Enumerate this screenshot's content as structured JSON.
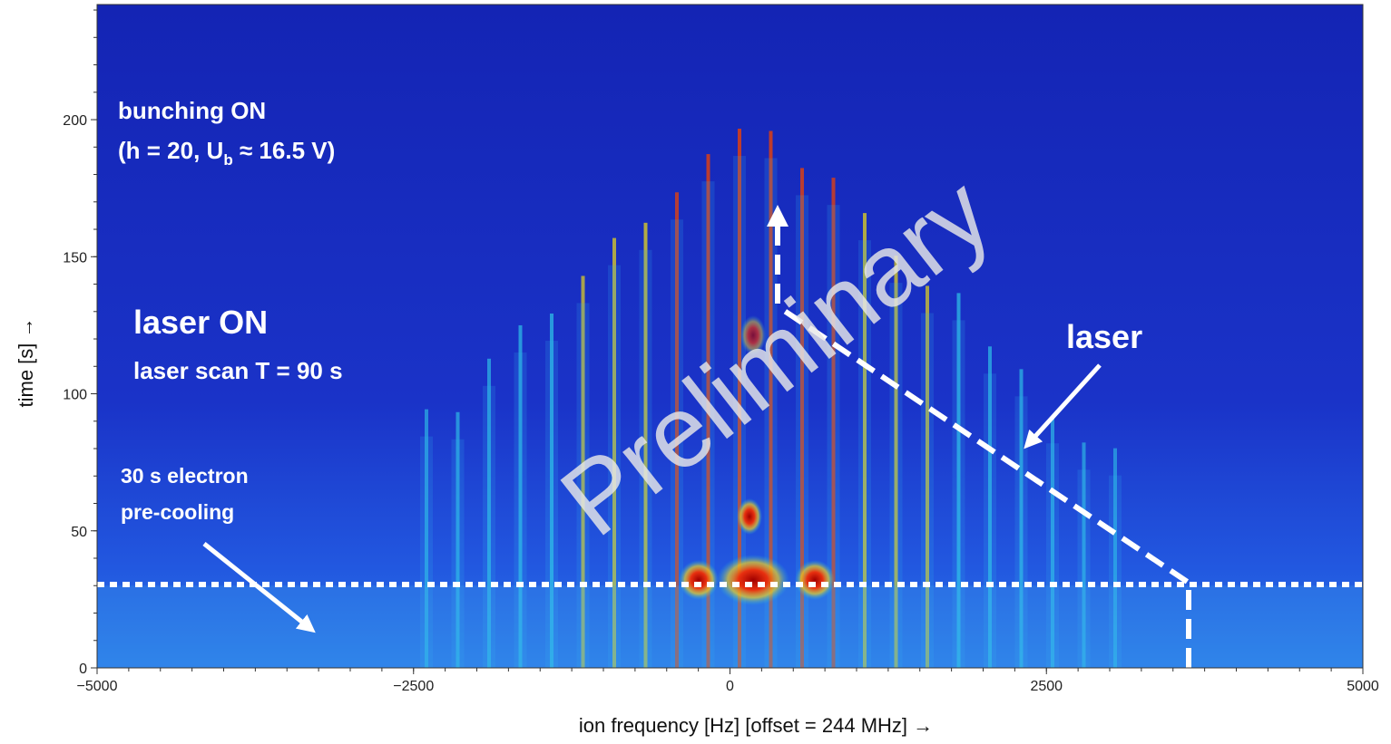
{
  "chart_data": {
    "type": "spectrogram",
    "xlabel": "ion frequency [Hz] [offset = 244 MHz] →",
    "ylabel": "time [s] →",
    "xlim": [
      -5000,
      5000
    ],
    "xticks": [
      {
        "value": -5000,
        "label": "−5000"
      },
      {
        "value": -2500,
        "label": "−2500"
      },
      0,
      2500,
      5000
    ],
    "ylim": [
      0,
      242
    ],
    "yticks": [
      0,
      50,
      100,
      150,
      200
    ],
    "annotations": {
      "bunching": "bunching ON",
      "bunching_params": [
        "(h = 20, U",
        "b",
        " ≈ 16.5 V)"
      ],
      "laser_on": "laser ON",
      "laser_scan": "laser scan T = 90 s",
      "cooling": [
        "30 s electron",
        "pre-cooling"
      ],
      "laser": "laser",
      "watermark": "Preliminary"
    }
  }
}
